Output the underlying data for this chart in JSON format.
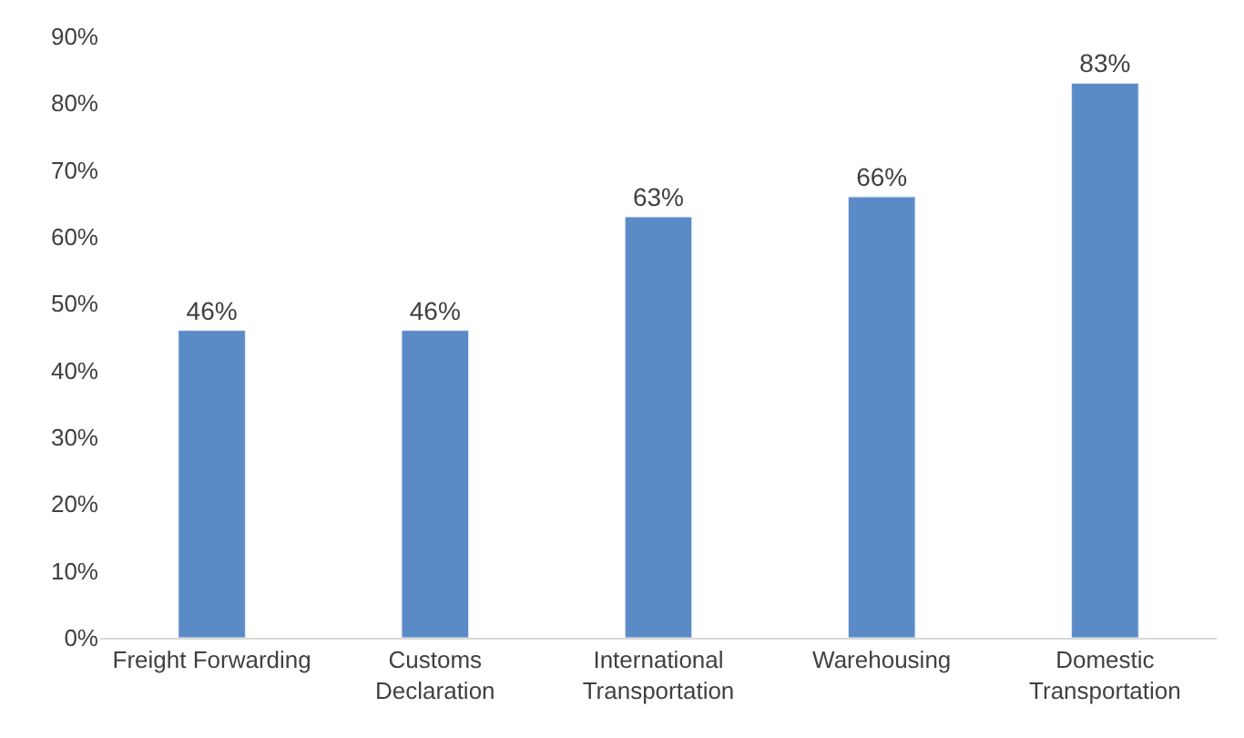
{
  "chart_data": {
    "type": "bar",
    "categories": [
      "Freight Forwarding",
      "Customs Declaration",
      "International Transportation",
      "Warehousing",
      "Domestic Transportation"
    ],
    "values": [
      46,
      46,
      63,
      66,
      83
    ],
    "value_labels": [
      "46%",
      "46%",
      "63%",
      "66%",
      "83%"
    ],
    "color": "#5b8bc6",
    "ylim": [
      0,
      90
    ],
    "yticks": [
      {
        "value": 0,
        "label": "0%"
      },
      {
        "value": 10,
        "label": "10%"
      },
      {
        "value": 20,
        "label": "20%"
      },
      {
        "value": 30,
        "label": "30%"
      },
      {
        "value": 40,
        "label": "40%"
      },
      {
        "value": 50,
        "label": "50%"
      },
      {
        "value": 60,
        "label": "60%"
      },
      {
        "value": 70,
        "label": "70%"
      },
      {
        "value": 80,
        "label": "80%"
      },
      {
        "value": 90,
        "label": "90%"
      }
    ],
    "grid": false
  }
}
